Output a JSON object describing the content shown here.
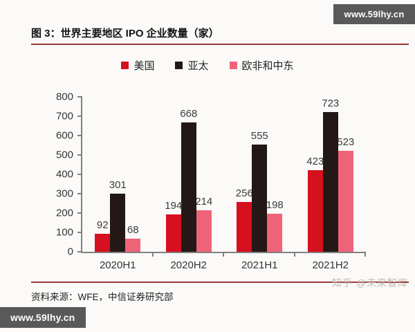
{
  "watermarks": {
    "top_right": "www.59lhy.cn",
    "bottom_left": "www.59lhy.cn",
    "attribution": "知乎 @未来智库"
  },
  "figure": {
    "title": "图 3：世界主要地区 IPO 企业数量（家）",
    "source": "资料来源：WFE，中信证券研究部"
  },
  "colors": {
    "accent_line": "#9b3735",
    "axis": "#808080"
  },
  "chart_data": {
    "type": "bar",
    "title": "世界主要地区 IPO 企业数量（家）",
    "categories": [
      "2020H1",
      "2020H2",
      "2021H1",
      "2021H2"
    ],
    "series": [
      {
        "name": "美国",
        "color": "#d7101f",
        "values": [
          92,
          194,
          256,
          423
        ]
      },
      {
        "name": "亚太",
        "color": "#231815",
        "values": [
          301,
          668,
          555,
          723
        ]
      },
      {
        "name": "欧非和中东",
        "color": "#ef6379",
        "values": [
          68,
          214,
          198,
          523
        ]
      }
    ],
    "xlabel": "",
    "ylabel": "",
    "ylim": [
      0,
      800
    ],
    "ytick_step": 100,
    "grid": false,
    "legend_position": "top",
    "value_labels": true
  }
}
